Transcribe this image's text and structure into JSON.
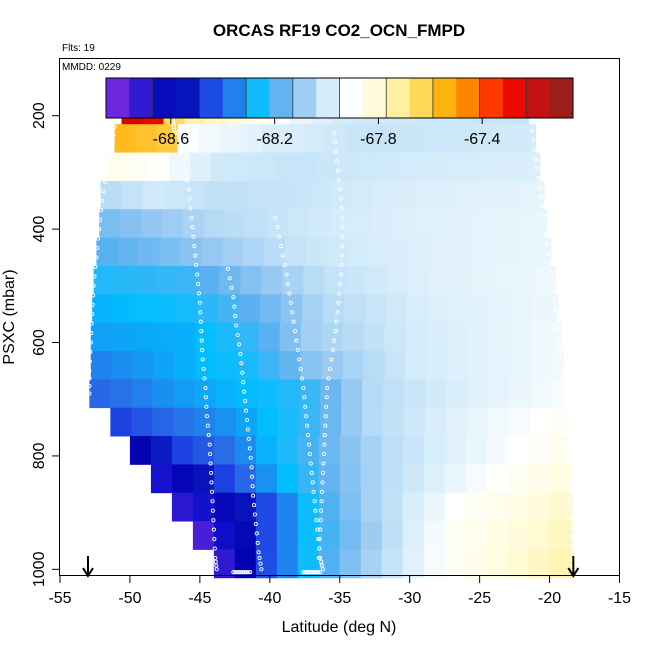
{
  "chart_data": {
    "type": "heatmap",
    "title": "ORCAS RF19 CO2_OCN_FMPD",
    "note_flights": "Flts: 19",
    "note_date": "MMDD: 0229",
    "xlabel": "Latitude (deg N)",
    "ylabel": "PSXC (mbar)",
    "xlim": [
      -55,
      -15
    ],
    "ylim": [
      1010,
      100
    ],
    "y_reversed": true,
    "x_ticks": [
      -55,
      -50,
      -45,
      -40,
      -35,
      -30,
      -25,
      -20,
      -15
    ],
    "y_ticks": [
      200,
      400,
      600,
      800,
      1000
    ],
    "colorbar": {
      "range": [
        -68.85,
        -67.05
      ],
      "tick_values": [
        -68.6,
        -68.2,
        -67.8,
        -67.4
      ],
      "tick_labels": [
        "-68.6",
        "-68.2",
        "-67.8",
        "-67.4"
      ],
      "colors": [
        "#8a2be2",
        "#4b20d8",
        "#1010cc",
        "#0000aa",
        "#1a3ee0",
        "#2a6ee8",
        "#00bfff",
        "#5ab0f0",
        "#9ccbf2",
        "#d4ecfa",
        "#ffffff",
        "#fffcd8",
        "#ffee99",
        "#ffd34d",
        "#ffaa00",
        "#ff7700",
        "#ff1a00",
        "#e00000",
        "#b02020",
        "#8b1a1a"
      ]
    },
    "value_range_note": "CO2_OCN_FMPD",
    "pressure_bins": [
      190,
      240,
      290,
      340,
      390,
      440,
      490,
      540,
      590,
      640,
      690,
      740,
      790,
      840,
      890,
      940,
      990
    ],
    "bin_height_mbar": 50,
    "rows": [
      {
        "p": 190,
        "lat_min": -50.6,
        "lat_max": -21.5
      },
      {
        "p": 240,
        "lat_min": -51.1,
        "lat_max": -21.0
      },
      {
        "p": 290,
        "lat_min": -51.7,
        "lat_max": -20.7
      },
      {
        "p": 340,
        "lat_min": -52.1,
        "lat_max": -20.4
      },
      {
        "p": 390,
        "lat_min": -52.2,
        "lat_max": -20.2
      },
      {
        "p": 440,
        "lat_min": -52.4,
        "lat_max": -19.9
      },
      {
        "p": 490,
        "lat_min": -52.6,
        "lat_max": -19.6
      },
      {
        "p": 540,
        "lat_min": -52.7,
        "lat_max": -19.4
      },
      {
        "p": 590,
        "lat_min": -52.8,
        "lat_max": -19.2
      },
      {
        "p": 640,
        "lat_min": -52.8,
        "lat_max": -19.0
      },
      {
        "p": 690,
        "lat_min": -52.9,
        "lat_max": -18.9
      },
      {
        "p": 740,
        "lat_min": -51.4,
        "lat_max": -18.7
      },
      {
        "p": 790,
        "lat_min": -50.0,
        "lat_max": -18.6
      },
      {
        "p": 840,
        "lat_min": -48.5,
        "lat_max": -18.5
      },
      {
        "p": 890,
        "lat_min": -47.0,
        "lat_max": -18.4
      },
      {
        "p": 940,
        "lat_min": -45.5,
        "lat_max": -18.4
      },
      {
        "p": 990,
        "lat_min": -44.0,
        "lat_max": -18.3
      }
    ],
    "cell_width_deg": 1.5,
    "value_field": [
      {
        "p": 190,
        "profile": [
          [
            -50.6,
            -67.2
          ],
          [
            -47.2,
            -67.3
          ],
          [
            -46.8,
            -67.7
          ],
          [
            -43.0,
            -67.8
          ],
          [
            -38.0,
            -67.95
          ],
          [
            -34.5,
            -68.0
          ],
          [
            -21.5,
            -68.02
          ]
        ]
      },
      {
        "p": 240,
        "profile": [
          [
            -51.1,
            -67.55
          ],
          [
            -47.2,
            -67.6
          ],
          [
            -46.8,
            -67.9
          ],
          [
            -40.0,
            -67.98
          ],
          [
            -33.0,
            -68.02
          ],
          [
            -21.0,
            -68.0
          ]
        ]
      },
      {
        "p": 290,
        "profile": [
          [
            -51.7,
            -67.85
          ],
          [
            -48.0,
            -67.9
          ],
          [
            -44.0,
            -68.0
          ],
          [
            -38.0,
            -68.02
          ],
          [
            -30.0,
            -68.0
          ],
          [
            -20.7,
            -67.98
          ]
        ]
      },
      {
        "p": 340,
        "profile": [
          [
            -52.1,
            -68.05
          ],
          [
            -48.0,
            -68.0
          ],
          [
            -44.0,
            -68.03
          ],
          [
            -38.0,
            -68.02
          ],
          [
            -30.0,
            -67.98
          ],
          [
            -20.4,
            -67.96
          ]
        ]
      },
      {
        "p": 390,
        "profile": [
          [
            -52.2,
            -68.15
          ],
          [
            -48.0,
            -68.1
          ],
          [
            -44.0,
            -68.05
          ],
          [
            -36.0,
            -68.0
          ],
          [
            -28.0,
            -67.97
          ],
          [
            -20.2,
            -67.95
          ]
        ]
      },
      {
        "p": 440,
        "profile": [
          [
            -52.4,
            -68.2
          ],
          [
            -48.0,
            -68.15
          ],
          [
            -44.0,
            -68.1
          ],
          [
            -38.0,
            -68.02
          ],
          [
            -28.0,
            -67.97
          ],
          [
            -19.9,
            -67.95
          ]
        ]
      },
      {
        "p": 490,
        "profile": [
          [
            -52.6,
            -68.25
          ],
          [
            -46.0,
            -68.22
          ],
          [
            -41.0,
            -68.12
          ],
          [
            -36.0,
            -68.03
          ],
          [
            -28.0,
            -67.97
          ],
          [
            -19.6,
            -67.94
          ]
        ]
      },
      {
        "p": 540,
        "profile": [
          [
            -52.7,
            -68.3
          ],
          [
            -46.0,
            -68.26
          ],
          [
            -41.0,
            -68.18
          ],
          [
            -36.0,
            -68.05
          ],
          [
            -28.0,
            -67.98
          ],
          [
            -19.4,
            -67.94
          ]
        ]
      },
      {
        "p": 590,
        "profile": [
          [
            -52.8,
            -68.32
          ],
          [
            -46.0,
            -68.3
          ],
          [
            -41.0,
            -68.22
          ],
          [
            -37.0,
            -68.08
          ],
          [
            -30.0,
            -68.0
          ],
          [
            -19.2,
            -67.93
          ]
        ]
      },
      {
        "p": 640,
        "profile": [
          [
            -52.8,
            -68.36
          ],
          [
            -46.0,
            -68.3
          ],
          [
            -41.0,
            -68.25
          ],
          [
            -37.0,
            -68.12
          ],
          [
            -30.0,
            -68.0
          ],
          [
            -19.0,
            -67.93
          ]
        ]
      },
      {
        "p": 690,
        "profile": [
          [
            -52.9,
            -68.4
          ],
          [
            -47.0,
            -68.33
          ],
          [
            -41.0,
            -68.28
          ],
          [
            -37.0,
            -68.22
          ],
          [
            -33.0,
            -68.05
          ],
          [
            -25.0,
            -67.97
          ],
          [
            -18.9,
            -67.92
          ]
        ]
      },
      {
        "p": 740,
        "profile": [
          [
            -51.4,
            -68.48
          ],
          [
            -47.0,
            -68.38
          ],
          [
            -42.0,
            -68.32
          ],
          [
            -37.0,
            -68.22
          ],
          [
            -33.0,
            -68.05
          ],
          [
            -25.0,
            -67.95
          ],
          [
            -18.7,
            -67.88
          ]
        ]
      },
      {
        "p": 790,
        "profile": [
          [
            -50.0,
            -68.62
          ],
          [
            -46.0,
            -68.45
          ],
          [
            -42.0,
            -68.35
          ],
          [
            -37.0,
            -68.2
          ],
          [
            -32.0,
            -68.05
          ],
          [
            -24.0,
            -67.93
          ],
          [
            -18.6,
            -67.85
          ]
        ]
      },
      {
        "p": 840,
        "profile": [
          [
            -48.5,
            -68.7
          ],
          [
            -45.0,
            -68.55
          ],
          [
            -42.0,
            -68.4
          ],
          [
            -38.0,
            -68.25
          ],
          [
            -32.0,
            -68.05
          ],
          [
            -24.0,
            -67.9
          ],
          [
            -18.5,
            -67.82
          ]
        ]
      },
      {
        "p": 890,
        "profile": [
          [
            -47.0,
            -68.72
          ],
          [
            -44.0,
            -68.65
          ],
          [
            -41.0,
            -68.5
          ],
          [
            -38.0,
            -68.3
          ],
          [
            -33.0,
            -68.08
          ],
          [
            -26.0,
            -67.88
          ],
          [
            -21.0,
            -67.82
          ],
          [
            -18.4,
            -67.78
          ]
        ]
      },
      {
        "p": 940,
        "profile": [
          [
            -45.5,
            -68.8
          ],
          [
            -44.0,
            -68.7
          ],
          [
            -41.0,
            -68.5
          ],
          [
            -38.0,
            -68.3
          ],
          [
            -33.0,
            -68.1
          ],
          [
            -27.0,
            -67.88
          ],
          [
            -21.0,
            -67.8
          ],
          [
            -18.4,
            -67.76
          ]
        ]
      },
      {
        "p": 990,
        "profile": [
          [
            -44.0,
            -68.78
          ],
          [
            -42.0,
            -68.6
          ],
          [
            -40.0,
            -68.42
          ],
          [
            -37.0,
            -68.25
          ],
          [
            -33.0,
            -68.08
          ],
          [
            -27.0,
            -67.88
          ],
          [
            -21.0,
            -67.78
          ],
          [
            -18.3,
            -67.74
          ]
        ]
      }
    ],
    "track_points_note": "white circle markers follow aircraft profiles",
    "tracks": [
      {
        "name": "high-level-leg-west",
        "points": [
          [
            -50.4,
            190
          ],
          [
            -49.5,
            190
          ],
          [
            -48.5,
            190
          ],
          [
            -47.5,
            190
          ],
          [
            -46.6,
            190
          ]
        ]
      },
      {
        "name": "high-level-leg-east",
        "points": [
          [
            -34.8,
            190
          ],
          [
            -33.0,
            190
          ],
          [
            -31.0,
            190
          ],
          [
            -29.0,
            190
          ],
          [
            -27.0,
            190
          ],
          [
            -25.0,
            190
          ],
          [
            -23.0,
            190
          ],
          [
            -21.8,
            190
          ]
        ]
      },
      {
        "name": "profile-west-descent",
        "points": [
          [
            -51.0,
            205
          ],
          [
            -51.3,
            250
          ],
          [
            -51.7,
            300
          ],
          [
            -52.0,
            350
          ],
          [
            -52.2,
            400
          ],
          [
            -52.4,
            450
          ],
          [
            -52.6,
            500
          ],
          [
            -52.7,
            550
          ],
          [
            -52.8,
            600
          ],
          [
            -52.9,
            650
          ],
          [
            -52.9,
            690
          ]
        ]
      },
      {
        "name": "profile-46-45",
        "points": [
          [
            -46.6,
            230
          ],
          [
            -46.2,
            280
          ],
          [
            -45.8,
            330
          ],
          [
            -45.6,
            380
          ],
          [
            -45.4,
            430
          ],
          [
            -45.2,
            480
          ],
          [
            -45.0,
            530
          ],
          [
            -44.9,
            580
          ],
          [
            -44.8,
            630
          ],
          [
            -44.6,
            680
          ],
          [
            -44.5,
            730
          ],
          [
            -44.3,
            780
          ],
          [
            -44.2,
            830
          ],
          [
            -44.1,
            880
          ],
          [
            -44.0,
            930
          ],
          [
            -43.9,
            980
          ],
          [
            -43.8,
            1000
          ]
        ]
      },
      {
        "name": "profile-43-41",
        "points": [
          [
            -43.0,
            470
          ],
          [
            -42.6,
            520
          ],
          [
            -42.4,
            570
          ],
          [
            -42.1,
            620
          ],
          [
            -41.9,
            670
          ],
          [
            -41.7,
            720
          ],
          [
            -41.5,
            770
          ],
          [
            -41.3,
            820
          ],
          [
            -41.2,
            870
          ],
          [
            -41.0,
            920
          ],
          [
            -40.8,
            970
          ],
          [
            -40.6,
            1000
          ]
        ]
      },
      {
        "name": "profile-40-37",
        "points": [
          [
            -39.6,
            380
          ],
          [
            -39.2,
            430
          ],
          [
            -38.8,
            480
          ],
          [
            -38.5,
            530
          ],
          [
            -38.2,
            580
          ],
          [
            -37.9,
            630
          ],
          [
            -37.6,
            680
          ],
          [
            -37.4,
            730
          ],
          [
            -37.2,
            780
          ],
          [
            -37.0,
            830
          ],
          [
            -36.8,
            880
          ],
          [
            -36.6,
            930
          ],
          [
            -36.4,
            980
          ],
          [
            -36.2,
            1000
          ]
        ]
      },
      {
        "name": "profile-36-33",
        "points": [
          [
            -35.4,
            230
          ],
          [
            -35.2,
            280
          ],
          [
            -35.0,
            330
          ],
          [
            -34.8,
            380
          ],
          [
            -34.8,
            430
          ],
          [
            -34.9,
            480
          ],
          [
            -35.1,
            530
          ],
          [
            -35.3,
            580
          ],
          [
            -35.6,
            630
          ],
          [
            -35.9,
            680
          ],
          [
            -36.0,
            730
          ],
          [
            -36.1,
            780
          ],
          [
            -36.2,
            830
          ],
          [
            -36.3,
            880
          ],
          [
            -36.4,
            930
          ],
          [
            -36.5,
            980
          ]
        ]
      },
      {
        "name": "profile-east-edge",
        "points": [
          [
            -21.3,
            210
          ],
          [
            -21.1,
            260
          ],
          [
            -20.8,
            310
          ],
          [
            -20.5,
            360
          ],
          [
            -20.3,
            410
          ],
          [
            -20.0,
            460
          ],
          [
            -19.7,
            510
          ],
          [
            -19.5,
            560
          ],
          [
            -19.3,
            610
          ],
          [
            -19.1,
            660
          ],
          [
            -18.9,
            710
          ],
          [
            -18.8,
            760
          ],
          [
            -18.7,
            810
          ],
          [
            -18.6,
            860
          ],
          [
            -18.5,
            910
          ],
          [
            -18.4,
            960
          ],
          [
            -18.3,
            995
          ]
        ]
      },
      {
        "name": "profile-46-top",
        "points": [
          [
            -46.9,
            200
          ],
          [
            -46.9,
            215
          ],
          [
            -46.8,
            230
          ]
        ]
      },
      {
        "name": "bottom-leg-42",
        "points": [
          [
            -42.6,
            1005
          ],
          [
            -42.2,
            1005
          ],
          [
            -41.8,
            1005
          ],
          [
            -41.4,
            1005
          ]
        ]
      },
      {
        "name": "bottom-leg-37",
        "points": [
          [
            -37.6,
            1005
          ],
          [
            -37.2,
            1005
          ],
          [
            -36.8,
            1005
          ],
          [
            -36.4,
            1005
          ]
        ]
      }
    ],
    "arrows": [
      {
        "name": "takeoff-arrow",
        "lat": -53.0
      },
      {
        "name": "landing-arrow",
        "lat": -18.3
      }
    ]
  }
}
